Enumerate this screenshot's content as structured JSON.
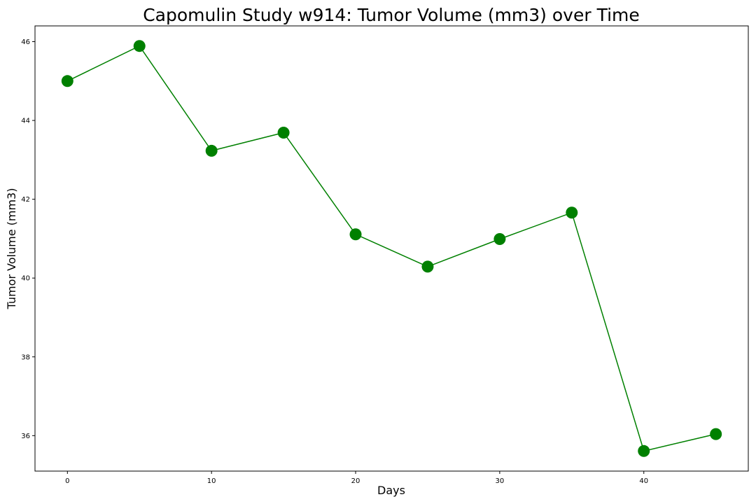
{
  "chart_data": {
    "type": "line",
    "title": "Capomulin Study w914: Tumor Volume (mm3) over Time",
    "xlabel": "Days",
    "ylabel": "Tumor Volume (mm3)",
    "xlim": [
      -2.25,
      47.25
    ],
    "ylim": [
      35.1,
      46.4
    ],
    "xticks": [
      0,
      10,
      20,
      30,
      40
    ],
    "yticks": [
      36,
      38,
      40,
      42,
      44,
      46
    ],
    "grid": false,
    "colors": {
      "line": "#008000",
      "marker": "#008000",
      "axes": "#000000",
      "background": "#ffffff"
    },
    "series": [
      {
        "x": [
          0,
          5,
          10,
          15,
          20,
          25,
          30,
          35,
          40,
          45
        ],
        "y": [
          45.0,
          45.89,
          43.23,
          43.69,
          41.11,
          40.29,
          40.99,
          41.66,
          35.61,
          36.04
        ],
        "marker": "circle"
      }
    ]
  }
}
